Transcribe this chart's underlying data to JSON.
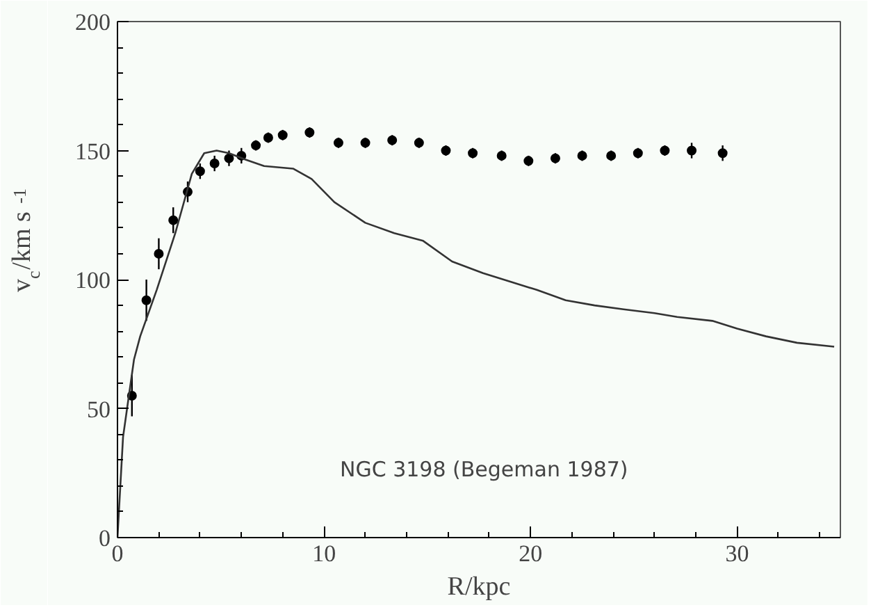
{
  "chart_data": {
    "type": "scatter",
    "xlabel": "R/kpc",
    "ylabel": "v$_{c}$/km s$^{-1}$",
    "annotations": [
      "NGC 3198 (Begeman 1987)"
    ],
    "xlim": [
      0,
      35
    ],
    "ylim": [
      0,
      200
    ],
    "xticks": [
      0,
      10,
      20,
      30
    ],
    "yticks": [
      0,
      50,
      100,
      150,
      200
    ],
    "marker": "circle",
    "series": [
      {
        "color": "#000000",
        "x": [
          0.7,
          1.4,
          2.0,
          2.7,
          3.4,
          4.0,
          4.7,
          5.4,
          6.0,
          6.7,
          7.3,
          8.0,
          9.3,
          10.7,
          12.0,
          13.3,
          14.6,
          15.9,
          17.2,
          18.6,
          19.9,
          21.2,
          22.5,
          23.9,
          25.2,
          26.5,
          27.8,
          29.3
        ],
        "values": [
          55,
          92,
          110,
          123,
          134,
          142,
          145,
          147,
          148,
          152,
          155,
          156,
          157,
          153,
          153,
          154,
          153,
          150,
          149,
          148,
          146,
          147,
          148,
          148,
          149,
          150,
          150,
          149
        ],
        "errors": [
          8,
          8,
          6,
          5,
          4,
          3,
          3,
          3,
          3,
          2,
          2,
          2,
          2,
          2,
          2,
          2,
          2,
          2,
          2,
          2,
          2,
          2,
          2,
          2,
          2,
          2,
          3,
          3
        ]
      },
      {
        "type": "line",
        "color": "#333333",
        "line_style": "solid",
        "marker": "none",
        "x": [
          0,
          0.27,
          0.8,
          1.1,
          1.9,
          2.8,
          3.6,
          4.2,
          4.8,
          5.4,
          6.2,
          7.1,
          8.5,
          9.4,
          10.5,
          12.0,
          13.4,
          14.8,
          16.2,
          17.7,
          19.1,
          20.3,
          21.7,
          23.1,
          24.5,
          26.0,
          27.1,
          28.8,
          30.0,
          31.4,
          32.9,
          34.7
        ],
        "values": [
          0,
          39,
          69,
          78,
          96,
          118,
          141,
          149,
          150,
          149,
          146.5,
          144,
          143,
          139,
          130,
          122,
          118,
          115,
          107,
          102.5,
          99,
          96,
          92,
          90,
          88.5,
          87,
          85.5,
          84,
          81,
          78,
          75.5,
          74
        ]
      }
    ]
  }
}
